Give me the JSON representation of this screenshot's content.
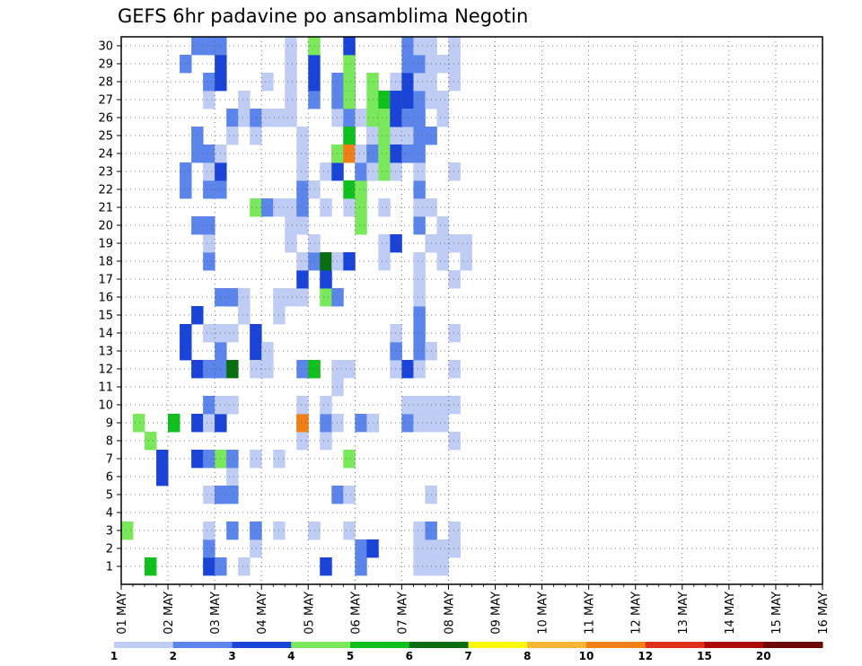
{
  "chart_data": {
    "type": "heatmap",
    "title": "GEFS 6hr padavine po ansamblima Negotin",
    "xlabel": "",
    "ylabel": "",
    "x_ticks": [
      "01 MAY",
      "02 MAY",
      "03 MAY",
      "04 MAY",
      "05 MAY",
      "06 MAY",
      "07 MAY",
      "08 MAY",
      "09 MAY",
      "10 MAY",
      "11 MAY",
      "12 MAY",
      "13 MAY",
      "14 MAY",
      "15 MAY",
      "16 MAY"
    ],
    "y_ticks": [
      "1",
      "2",
      "3",
      "4",
      "5",
      "6",
      "7",
      "8",
      "9",
      "10",
      "11",
      "12",
      "13",
      "14",
      "15",
      "16",
      "17",
      "18",
      "19",
      "20",
      "21",
      "22",
      "23",
      "24",
      "25",
      "26",
      "27",
      "28",
      "29",
      "30"
    ],
    "time_steps_per_day": 4,
    "n_members": 30,
    "grid": true,
    "colorbar": {
      "levels": [
        1,
        2,
        3,
        4,
        5,
        6,
        7,
        8,
        10,
        12,
        15,
        20
      ],
      "labels": [
        "1",
        "2",
        "3",
        "4",
        "5",
        "6",
        "7",
        "8",
        "10",
        "12",
        "15",
        "20"
      ],
      "colors": [
        "#bfcdf5",
        "#5b85ea",
        "#1a44d8",
        "#79e85a",
        "#10c01c",
        "#0a6e10",
        "#fbf80b",
        "#f9b533",
        "#f07f17",
        "#e0301a",
        "#ad0a0a",
        "#6e0707"
      ]
    },
    "cells": [
      [
        4,
        1,
        3
      ],
      [
        4,
        2,
        9
      ],
      [
        4,
        3,
        8
      ],
      [
        5,
        3,
        1
      ],
      [
        3,
        4,
        6
      ],
      [
        3,
        4,
        7
      ],
      [
        3,
        5,
        9
      ],
      [
        5,
        5,
        9
      ],
      [
        3,
        6,
        13
      ],
      [
        3,
        6,
        14
      ],
      [
        2,
        6,
        22
      ],
      [
        2,
        6,
        23
      ],
      [
        2,
        6,
        29
      ],
      [
        3,
        7,
        7
      ],
      [
        3,
        7,
        9
      ],
      [
        3,
        7,
        12
      ],
      [
        3,
        7,
        15
      ],
      [
        2,
        7,
        20
      ],
      [
        2,
        7,
        24
      ],
      [
        2,
        7,
        25
      ],
      [
        2,
        7,
        30
      ],
      [
        3,
        8,
        1
      ],
      [
        2,
        8,
        2
      ],
      [
        1,
        8,
        3
      ],
      [
        1,
        8,
        5
      ],
      [
        2,
        8,
        7
      ],
      [
        1,
        8,
        9
      ],
      [
        2,
        8,
        10
      ],
      [
        2,
        8,
        12
      ],
      [
        1,
        8,
        14
      ],
      [
        2,
        8,
        18
      ],
      [
        1,
        8,
        19
      ],
      [
        2,
        8,
        20
      ],
      [
        2,
        8,
        22
      ],
      [
        1,
        8,
        23
      ],
      [
        2,
        8,
        24
      ],
      [
        1,
        8,
        27
      ],
      [
        2,
        8,
        28
      ],
      [
        2,
        8,
        30
      ],
      [
        2,
        9,
        1
      ],
      [
        3,
        9,
        5
      ],
      [
        2,
        9,
        5
      ],
      [
        3,
        9,
        7
      ],
      [
        4,
        9,
        7
      ],
      [
        2,
        9,
        9
      ],
      [
        3,
        9,
        9
      ],
      [
        1,
        9,
        10
      ],
      [
        2,
        9,
        12
      ],
      [
        2,
        9,
        13
      ],
      [
        1,
        9,
        14
      ],
      [
        2,
        9,
        16
      ],
      [
        1,
        9,
        22
      ],
      [
        2,
        9,
        22
      ],
      [
        3,
        9,
        23
      ],
      [
        1,
        9,
        24
      ],
      [
        3,
        9,
        28
      ],
      [
        3,
        9,
        29
      ],
      [
        2,
        9,
        30
      ],
      [
        2,
        10,
        3
      ],
      [
        2,
        10,
        10
      ],
      [
        6,
        10,
        12
      ],
      [
        3,
        10,
        16
      ],
      [
        2,
        10,
        26
      ],
      [
        1,
        10,
        6
      ],
      [
        1,
        10,
        10
      ],
      [
        1,
        10,
        25
      ],
      [
        2,
        10,
        5
      ],
      [
        2,
        10,
        7
      ],
      [
        1,
        10,
        14
      ],
      [
        2,
        10,
        16
      ],
      [
        1,
        11,
        1
      ],
      [
        1,
        11,
        15
      ],
      [
        1,
        11,
        16
      ],
      [
        1,
        11,
        15
      ],
      [
        1,
        11,
        16
      ],
      [
        1,
        11,
        26
      ],
      [
        1,
        11,
        27
      ],
      [
        1,
        12,
        2
      ],
      [
        1,
        12,
        3
      ],
      [
        2,
        12,
        3
      ],
      [
        1,
        12,
        7
      ],
      [
        1,
        12,
        25
      ],
      [
        1,
        12,
        26
      ],
      [
        2,
        12,
        26
      ],
      [
        3,
        12,
        13
      ],
      [
        3,
        12,
        14
      ],
      [
        4,
        12,
        21
      ],
      [
        1,
        12,
        12
      ],
      [
        1,
        13,
        12
      ],
      [
        1,
        13,
        13
      ],
      [
        2,
        13,
        21
      ],
      [
        1,
        13,
        26
      ],
      [
        1,
        13,
        28
      ],
      [
        1,
        14,
        3
      ],
      [
        1,
        14,
        7
      ],
      [
        1,
        14,
        15
      ],
      [
        1,
        14,
        16
      ],
      [
        1,
        14,
        21
      ],
      [
        1,
        14,
        26
      ],
      [
        1,
        15,
        16
      ],
      [
        1,
        15,
        19
      ],
      [
        1,
        15,
        20
      ],
      [
        1,
        15,
        21
      ],
      [
        1,
        15,
        26
      ],
      [
        1,
        15,
        27
      ],
      [
        1,
        15,
        28
      ],
      [
        1,
        15,
        29
      ],
      [
        1,
        15,
        30
      ],
      [
        1,
        16,
        8
      ],
      [
        1,
        16,
        9
      ],
      [
        8,
        16,
        9
      ],
      [
        9,
        16,
        9
      ],
      [
        1,
        16,
        10
      ],
      [
        2,
        16,
        12
      ],
      [
        1,
        16,
        16
      ],
      [
        3,
        16,
        17
      ],
      [
        1,
        16,
        18
      ],
      [
        1,
        16,
        20
      ],
      [
        2,
        16,
        21
      ],
      [
        2,
        16,
        22
      ],
      [
        1,
        16,
        23
      ],
      [
        1,
        16,
        24
      ],
      [
        1,
        16,
        25
      ],
      [
        1,
        17,
        3
      ],
      [
        1,
        17,
        3
      ],
      [
        3,
        17,
        12
      ],
      [
        4,
        17,
        12
      ],
      [
        5,
        17,
        12
      ],
      [
        2,
        17,
        18
      ],
      [
        1,
        17,
        19
      ],
      [
        1,
        17,
        22
      ],
      [
        2,
        17,
        27
      ],
      [
        3,
        17,
        28
      ],
      [
        3,
        17,
        29
      ],
      [
        4,
        17,
        30
      ],
      [
        1,
        18,
        1
      ],
      [
        3,
        18,
        1
      ],
      [
        1,
        18,
        8
      ],
      [
        2,
        18,
        9
      ],
      [
        1,
        18,
        10
      ],
      [
        4,
        18,
        16
      ],
      [
        2,
        18,
        17
      ],
      [
        3,
        18,
        17
      ],
      [
        6,
        18,
        18
      ],
      [
        1,
        18,
        21
      ],
      [
        1,
        18,
        23
      ],
      [
        2,
        19,
        5
      ],
      [
        1,
        19,
        9
      ],
      [
        1,
        19,
        11
      ],
      [
        1,
        19,
        12
      ],
      [
        2,
        19,
        16
      ],
      [
        1,
        19,
        18
      ],
      [
        3,
        19,
        23
      ],
      [
        3,
        19,
        24
      ],
      [
        1,
        19,
        24
      ],
      [
        7,
        19,
        24
      ],
      [
        1,
        19,
        26
      ],
      [
        2,
        19,
        27
      ],
      [
        2,
        19,
        28
      ],
      [
        4,
        19,
        24
      ],
      [
        1,
        20,
        3
      ],
      [
        1,
        20,
        5
      ],
      [
        4,
        20,
        7
      ],
      [
        3,
        20,
        18
      ],
      [
        2,
        20,
        24
      ],
      [
        2,
        20,
        25
      ],
      [
        1,
        20,
        26
      ],
      [
        1,
        20,
        12
      ],
      [
        1,
        20,
        24
      ],
      [
        2,
        20,
        26
      ],
      [
        1,
        20,
        21
      ],
      [
        3,
        20,
        27
      ],
      [
        4,
        20,
        27
      ],
      [
        3,
        20,
        28
      ],
      [
        4,
        20,
        28
      ],
      [
        5,
        20,
        24
      ],
      [
        5,
        20,
        25
      ],
      [
        4,
        20,
        29
      ],
      [
        1,
        20,
        30
      ],
      [
        3,
        20,
        30
      ],
      [
        5,
        20,
        22
      ],
      [
        6,
        20,
        24
      ],
      [
        7,
        20,
        24
      ],
      [
        8,
        20,
        24
      ],
      [
        9,
        20,
        24
      ],
      [
        2,
        21,
        1
      ],
      [
        2,
        21,
        2
      ],
      [
        2,
        21,
        9
      ],
      [
        1,
        21,
        22
      ],
      [
        1,
        21,
        23
      ],
      [
        1,
        21,
        24
      ],
      [
        1,
        21,
        26
      ],
      [
        4,
        21,
        21
      ],
      [
        4,
        21,
        20
      ],
      [
        4,
        21,
        22
      ],
      [
        2,
        21,
        23
      ],
      [
        1,
        21,
        24
      ],
      [
        4,
        22,
        28
      ],
      [
        4,
        22,
        27
      ],
      [
        4,
        22,
        26
      ],
      [
        4,
        22,
        24
      ],
      [
        5,
        22,
        24
      ],
      [
        3,
        22,
        25
      ],
      [
        2,
        22,
        23
      ],
      [
        1,
        22,
        25
      ],
      [
        1,
        22,
        23
      ],
      [
        2,
        22,
        24
      ],
      [
        3,
        22,
        9
      ],
      [
        1,
        22,
        9
      ],
      [
        3,
        22,
        2
      ],
      [
        1,
        23,
        24
      ],
      [
        1,
        23,
        18
      ],
      [
        1,
        23,
        19
      ],
      [
        1,
        23,
        21
      ],
      [
        4,
        23,
        24
      ],
      [
        3,
        23,
        26
      ],
      [
        5,
        23,
        27
      ],
      [
        4,
        23,
        26
      ],
      [
        4,
        23,
        23
      ],
      [
        4,
        23,
        25
      ],
      [
        4,
        23,
        25
      ],
      [
        1,
        24,
        12
      ],
      [
        1,
        24,
        12
      ],
      [
        1,
        24,
        13
      ],
      [
        1,
        24,
        13
      ],
      [
        2,
        24,
        13
      ],
      [
        1,
        24,
        14
      ],
      [
        3,
        24,
        19
      ],
      [
        1,
        24,
        23
      ],
      [
        1,
        24,
        25
      ],
      [
        1,
        24,
        27
      ],
      [
        1,
        24,
        28
      ],
      [
        2,
        24,
        27
      ],
      [
        3,
        24,
        24
      ],
      [
        3,
        24,
        26
      ],
      [
        3,
        24,
        26
      ],
      [
        3,
        24,
        27
      ],
      [
        2,
        25,
        10
      ],
      [
        2,
        25,
        9
      ],
      [
        2,
        25,
        9
      ],
      [
        1,
        25,
        10
      ],
      [
        3,
        25,
        12
      ],
      [
        3,
        25,
        24
      ],
      [
        2,
        25,
        24
      ],
      [
        1,
        25,
        25
      ],
      [
        2,
        25,
        26
      ],
      [
        2,
        25,
        27
      ],
      [
        3,
        25,
        27
      ],
      [
        3,
        25,
        28
      ],
      [
        2,
        25,
        29
      ],
      [
        2,
        25,
        30
      ],
      [
        2,
        25,
        26
      ],
      [
        2,
        25,
        24
      ],
      [
        1,
        26,
        1
      ],
      [
        1,
        26,
        2
      ],
      [
        1,
        26,
        2
      ],
      [
        1,
        26,
        3
      ],
      [
        1,
        26,
        9
      ],
      [
        1,
        26,
        9
      ],
      [
        1,
        26,
        10
      ],
      [
        1,
        26,
        12
      ],
      [
        2,
        26,
        13
      ],
      [
        2,
        26,
        14
      ],
      [
        2,
        26,
        15
      ],
      [
        1,
        26,
        16
      ],
      [
        1,
        26,
        17
      ],
      [
        1,
        26,
        18
      ],
      [
        2,
        26,
        20
      ],
      [
        1,
        26,
        21
      ],
      [
        2,
        26,
        22
      ],
      [
        1,
        26,
        23
      ],
      [
        2,
        26,
        24
      ],
      [
        2,
        26,
        25
      ],
      [
        2,
        26,
        26
      ],
      [
        2,
        26,
        27
      ],
      [
        1,
        26,
        28
      ],
      [
        2,
        26,
        29
      ],
      [
        1,
        26,
        30
      ],
      [
        1,
        27,
        1
      ],
      [
        1,
        27,
        2
      ],
      [
        2,
        27,
        3
      ],
      [
        1,
        27,
        5
      ],
      [
        1,
        27,
        9
      ],
      [
        1,
        27,
        10
      ],
      [
        1,
        27,
        13
      ],
      [
        1,
        27,
        19
      ],
      [
        1,
        27,
        21
      ],
      [
        2,
        27,
        25
      ],
      [
        1,
        27,
        27
      ],
      [
        1,
        27,
        28
      ],
      [
        1,
        27,
        29
      ],
      [
        1,
        27,
        30
      ],
      [
        1,
        28,
        1
      ],
      [
        1,
        28,
        2
      ],
      [
        1,
        28,
        9
      ],
      [
        1,
        28,
        10
      ],
      [
        1,
        28,
        18
      ],
      [
        1,
        28,
        19
      ],
      [
        1,
        28,
        20
      ],
      [
        1,
        28,
        26
      ],
      [
        1,
        28,
        27
      ],
      [
        1,
        28,
        29
      ],
      [
        1,
        29,
        2
      ],
      [
        1,
        29,
        2
      ],
      [
        1,
        29,
        3
      ],
      [
        1,
        29,
        8
      ],
      [
        1,
        29,
        10
      ],
      [
        1,
        29,
        12
      ],
      [
        1,
        29,
        14
      ],
      [
        1,
        29,
        17
      ],
      [
        1,
        29,
        19
      ],
      [
        1,
        29,
        23
      ],
      [
        1,
        29,
        28
      ],
      [
        1,
        29,
        29
      ],
      [
        1,
        29,
        30
      ],
      [
        1,
        30,
        18
      ],
      [
        1,
        30,
        19
      ]
    ]
  }
}
